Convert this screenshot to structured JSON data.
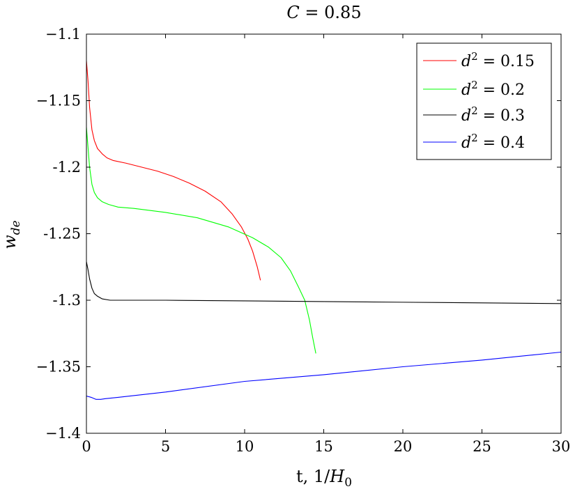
{
  "chart_data": {
    "type": "line",
    "title": {
      "lhs": "C",
      "rhs": " = 0.85"
    },
    "xlabel": {
      "prefix": "t, 1/",
      "var": "H",
      "sub": "0"
    },
    "ylabel": {
      "var": "w",
      "sub": "de"
    },
    "xlim": [
      0,
      30
    ],
    "ylim": [
      -1.4,
      -1.1
    ],
    "xticks": [
      0,
      5,
      10,
      15,
      20,
      25,
      30
    ],
    "xtick_labels": [
      "0",
      "5",
      "10",
      "15",
      "20",
      "25",
      "30"
    ],
    "yticks": [
      -1.4,
      -1.35,
      -1.3,
      -1.25,
      -1.2,
      -1.15,
      -1.1
    ],
    "ytick_labels": [
      "−1.4",
      "−1.35",
      "-1.3",
      "-1.25",
      "-1.2",
      "−1.15",
      "−1.1"
    ],
    "grid": false,
    "legend_position": "top-right",
    "series": [
      {
        "name": {
          "var": "d",
          "sup": "2",
          "rest": " = 0.15"
        },
        "color": "#ff0000",
        "x": [
          0,
          0.1,
          0.2,
          0.35,
          0.5,
          0.7,
          1.0,
          1.3,
          1.7,
          2.5,
          3.5,
          4.5,
          5.5,
          6.5,
          7.5,
          8.5,
          9.2,
          9.8,
          10.2,
          10.5,
          10.8,
          11.0
        ],
        "y": [
          -1.12,
          -1.135,
          -1.155,
          -1.172,
          -1.18,
          -1.186,
          -1.19,
          -1.193,
          -1.195,
          -1.197,
          -1.2,
          -1.203,
          -1.207,
          -1.212,
          -1.218,
          -1.226,
          -1.235,
          -1.245,
          -1.254,
          -1.263,
          -1.275,
          -1.285
        ]
      },
      {
        "name": {
          "var": "d",
          "sup": "2",
          "rest": " = 0.2"
        },
        "color": "#00ff00",
        "x": [
          0,
          0.1,
          0.2,
          0.35,
          0.5,
          0.7,
          1.0,
          1.4,
          2.0,
          3.0,
          5.0,
          7.0,
          9.0,
          10.5,
          11.5,
          12.3,
          12.9,
          13.4,
          13.8,
          14.1,
          14.3,
          14.5
        ],
        "y": [
          -1.17,
          -1.185,
          -1.2,
          -1.213,
          -1.219,
          -1.223,
          -1.226,
          -1.228,
          -1.23,
          -1.231,
          -1.234,
          -1.238,
          -1.245,
          -1.253,
          -1.26,
          -1.268,
          -1.278,
          -1.29,
          -1.3,
          -1.315,
          -1.328,
          -1.34
        ]
      },
      {
        "name": {
          "var": "d",
          "sup": "2",
          "rest": " = 0.3"
        },
        "color": "#000000",
        "x": [
          0,
          0.1,
          0.2,
          0.35,
          0.5,
          0.7,
          1.0,
          1.5,
          2.0,
          5,
          10,
          15,
          20,
          25,
          30
        ],
        "y": [
          -1.271,
          -1.277,
          -1.284,
          -1.291,
          -1.295,
          -1.297,
          -1.299,
          -1.3,
          -1.3,
          -1.3,
          -1.3005,
          -1.301,
          -1.3015,
          -1.302,
          -1.3025
        ]
      },
      {
        "name": {
          "var": "d",
          "sup": "2",
          "rest": " = 0.4"
        },
        "color": "#0000ff",
        "x": [
          0,
          0.3,
          0.6,
          0.9,
          1.2,
          2,
          5,
          10,
          15,
          20,
          25,
          30
        ],
        "y": [
          -1.372,
          -1.373,
          -1.3745,
          -1.3745,
          -1.374,
          -1.373,
          -1.369,
          -1.361,
          -1.356,
          -1.35,
          -1.345,
          -1.339
        ]
      }
    ]
  }
}
